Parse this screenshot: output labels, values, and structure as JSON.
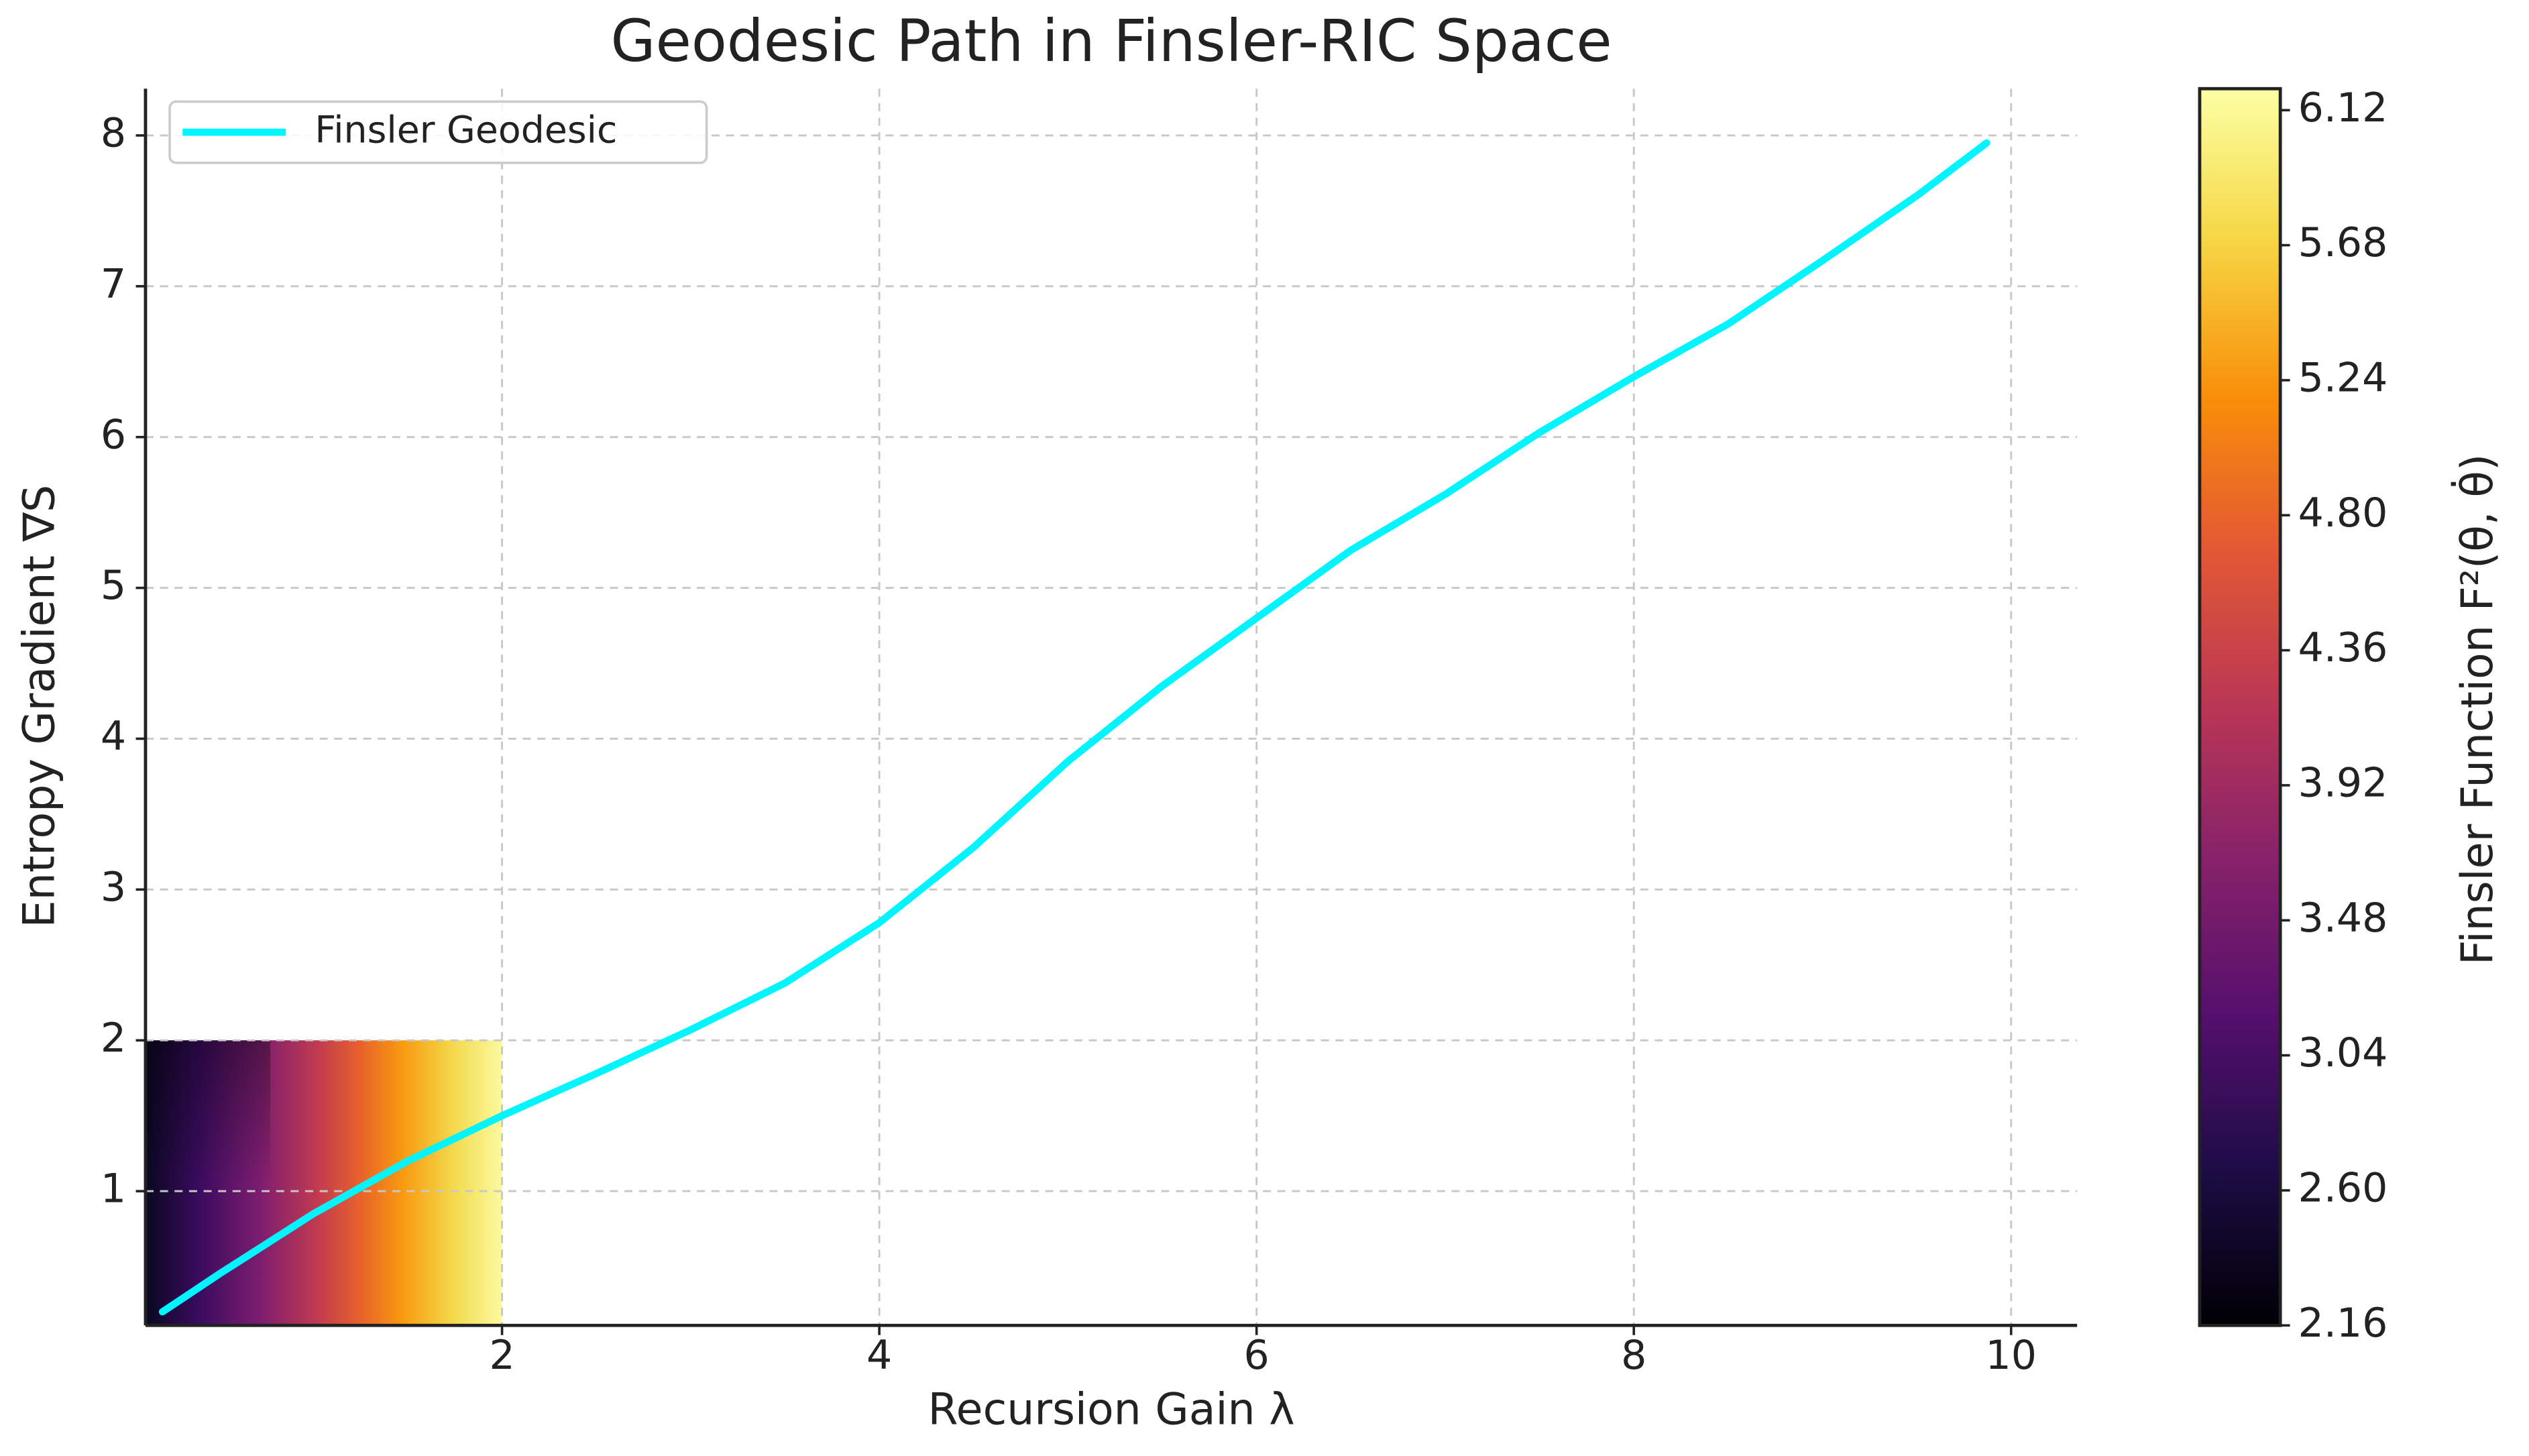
{
  "chart_data": {
    "type": "line",
    "title": "Geodesic Path in Finsler-RIC Space",
    "x_label": "Recursion Gain λ",
    "y_label": "Entropy Gradient ∇S",
    "x": [
      0.2,
      0.5,
      1,
      1.5,
      2,
      2.5,
      3,
      3.5,
      4,
      4.5,
      5,
      5.5,
      6,
      6.5,
      7,
      7.5,
      8,
      8.5,
      9,
      9.5,
      9.87
    ],
    "series": [
      {
        "name": "Finsler Geodesic",
        "color": "#00f5ff",
        "values": [
          0.2,
          0.45,
          0.85,
          1.2,
          1.5,
          1.78,
          2.07,
          2.38,
          2.78,
          3.28,
          3.85,
          4.35,
          4.8,
          5.25,
          5.62,
          6.03,
          6.4,
          6.75,
          7.17,
          7.6,
          7.95
        ]
      }
    ],
    "xlim": [
      0.11,
      10.35
    ],
    "ylim": [
      0.11,
      8.31
    ],
    "xticks": [
      2,
      4,
      6,
      8,
      10
    ],
    "yticks": [
      1,
      2,
      3,
      4,
      5,
      6,
      7,
      8
    ],
    "grid": true,
    "legend": "upper left",
    "heatmap": {
      "x": [
        0.11,
        2
      ],
      "y": [
        0.11,
        2
      ]
    },
    "colorbar": {
      "label": "Finsler Function F²(θ, θ̇)",
      "clim": [
        2.16,
        6.19
      ],
      "ticks": [
        2.16,
        {
          "value": 2.6,
          "label": "2.60"
        },
        3.04,
        3.48,
        3.92,
        4.36,
        {
          "value": 4.8,
          "label": "4.80"
        },
        5.24,
        5.68,
        6.12
      ]
    }
  }
}
